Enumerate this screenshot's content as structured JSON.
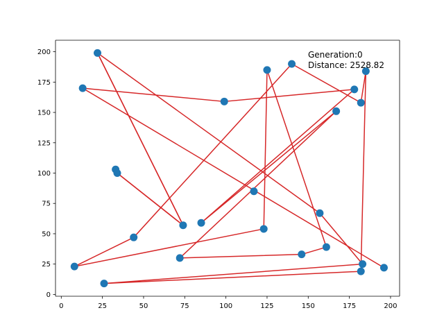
{
  "chart_data": {
    "type": "scatter",
    "title": "",
    "xlabel": "",
    "ylabel": "",
    "xlim": [
      -3.5,
      205.5
    ],
    "ylim": [
      -1.5,
      209.5
    ],
    "xticks": [
      0,
      25,
      50,
      75,
      100,
      125,
      150,
      175,
      200
    ],
    "yticks": [
      0,
      25,
      50,
      75,
      100,
      125,
      150,
      175,
      200
    ],
    "xtick_labels": [
      "0",
      "25",
      "50",
      "75",
      "100",
      "125",
      "150",
      "175",
      "200"
    ],
    "ytick_labels": [
      "0",
      "25",
      "50",
      "75",
      "100",
      "125",
      "150",
      "175",
      "200"
    ],
    "grid": false,
    "legend": "none",
    "annotation": {
      "generation": "Generation:0",
      "distance": "Distance: 2528.82"
    },
    "series": [
      {
        "style": "points",
        "color": "#1f77b4",
        "points": [
          [
            22,
            199
          ],
          [
            125,
            185
          ],
          [
            140,
            190
          ],
          [
            185,
            184
          ],
          [
            178,
            169
          ],
          [
            182,
            158
          ],
          [
            13,
            170
          ],
          [
            99,
            159
          ],
          [
            167,
            151
          ],
          [
            33,
            103
          ],
          [
            34,
            100
          ],
          [
            117,
            85
          ],
          [
            157,
            67
          ],
          [
            74,
            57
          ],
          [
            85,
            59
          ],
          [
            123,
            54
          ],
          [
            44,
            47
          ],
          [
            161,
            39
          ],
          [
            146,
            33
          ],
          [
            72,
            30
          ],
          [
            8,
            23
          ],
          [
            183,
            25
          ],
          [
            196,
            22
          ],
          [
            182,
            19
          ],
          [
            26,
            9
          ]
        ]
      },
      {
        "style": "path",
        "color": "#d62728",
        "path": [
          [
            22,
            199
          ],
          [
            74,
            57
          ],
          [
            34,
            100
          ],
          [
            33,
            103
          ],
          [
            34,
            100
          ],
          [
            74,
            57
          ],
          [
            22,
            199
          ],
          [
            157,
            67
          ],
          [
            183,
            25
          ],
          [
            26,
            9
          ],
          [
            182,
            19
          ],
          [
            185,
            184
          ],
          [
            182,
            158
          ],
          [
            140,
            190
          ],
          [
            44,
            47
          ],
          [
            8,
            23
          ],
          [
            123,
            54
          ],
          [
            125,
            185
          ],
          [
            161,
            39
          ],
          [
            146,
            33
          ],
          [
            72,
            30
          ],
          [
            167,
            151
          ],
          [
            85,
            59
          ],
          [
            178,
            169
          ],
          [
            99,
            159
          ],
          [
            13,
            170
          ],
          [
            196,
            22
          ]
        ]
      }
    ]
  }
}
